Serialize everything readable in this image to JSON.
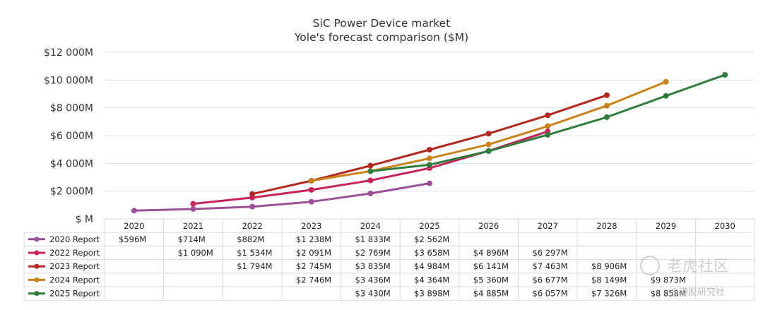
{
  "chart_data": {
    "type": "line",
    "title": "SiC Power Device market",
    "subtitle": "Yole's forecast comparison ($M)",
    "categories": [
      "2020",
      "2021",
      "2022",
      "2023",
      "2024",
      "2025",
      "2026",
      "2027",
      "2028",
      "2029",
      "2030"
    ],
    "y_ticks": [
      "$ M",
      "$2 000M",
      "$4 000M",
      "$6 000M",
      "$8 000M",
      "$10 000M",
      "$12 000M"
    ],
    "ylim": [
      0,
      12000
    ],
    "grid": true,
    "legend_placement": "data-table-left",
    "series": [
      {
        "name": "2020 Report",
        "color": "#9b4f96",
        "values": [
          596,
          714,
          882,
          1238,
          1833,
          2562,
          null,
          null,
          null,
          null,
          null
        ],
        "labels": [
          "$596M",
          "$714M",
          "$882M",
          "$1 238M",
          "$1 833M",
          "$2 562M",
          "",
          "",
          "",
          "",
          ""
        ]
      },
      {
        "name": "2022 Report",
        "color": "#c8245a",
        "values": [
          null,
          1090,
          1534,
          2091,
          2769,
          3658,
          4896,
          6297,
          null,
          null,
          null
        ],
        "labels": [
          "",
          "$1 090M",
          "$1 534M",
          "$2 091M",
          "$2 769M",
          "$3 658M",
          "$4 896M",
          "$6 297M",
          "",
          "",
          ""
        ]
      },
      {
        "name": "2023 Report",
        "color": "#b5261e",
        "values": [
          null,
          null,
          1794,
          2745,
          3835,
          4984,
          6141,
          7463,
          8906,
          null,
          null
        ],
        "labels": [
          "",
          "",
          "$1 794M",
          "$2 745M",
          "$3 835M",
          "$4 984M",
          "$6 141M",
          "$7 463M",
          "$8 906M",
          "",
          ""
        ]
      },
      {
        "name": "2024 Report",
        "color": "#c98318",
        "values": [
          null,
          null,
          null,
          2746,
          3436,
          4364,
          5360,
          6677,
          8149,
          9873,
          null
        ],
        "labels": [
          "",
          "",
          "",
          "$2 746M",
          "$3 436M",
          "$4 364M",
          "$5 360M",
          "$6 677M",
          "$8 149M",
          "$9 873M",
          ""
        ]
      },
      {
        "name": "2025 Report",
        "color": "#2e7d3c",
        "values": [
          null,
          null,
          null,
          null,
          3430,
          3898,
          4885,
          6057,
          7326,
          8858,
          10373
        ],
        "labels": [
          "",
          "",
          "",
          "",
          "$3 430M",
          "$3 898M",
          "$4 885M",
          "$6 057M",
          "$7 326M",
          "$8 858M",
          ""
        ]
      }
    ]
  },
  "watermark": {
    "brand": "老虎社区",
    "sub": "@港股研究社"
  }
}
